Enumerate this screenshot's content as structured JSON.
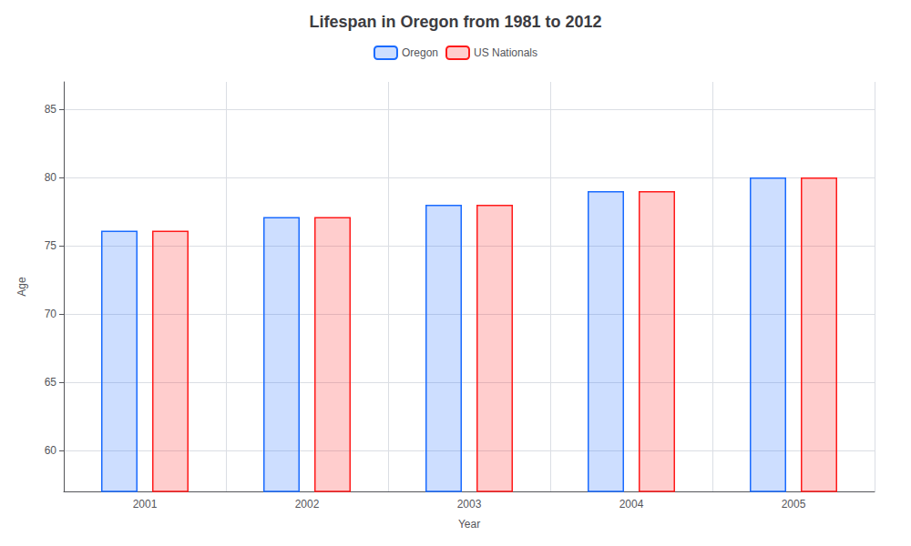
{
  "chart_data": {
    "type": "bar",
    "title": "Lifespan in Oregon from 1981 to 2012",
    "xlabel": "Year",
    "ylabel": "Age",
    "categories": [
      "2001",
      "2002",
      "2003",
      "2004",
      "2005"
    ],
    "series": [
      {
        "name": "Oregon",
        "color": "#1a6bff",
        "values": [
          76.1,
          77.1,
          78.0,
          79.0,
          80.0
        ]
      },
      {
        "name": "US Nationals",
        "color": "#ff1a1a",
        "values": [
          76.1,
          77.1,
          78.0,
          79.0,
          80.0
        ]
      }
    ],
    "ylim": [
      57,
      87
    ],
    "yticks": [
      60,
      65,
      70,
      75,
      80,
      85
    ],
    "grid": true,
    "legend": "top"
  }
}
